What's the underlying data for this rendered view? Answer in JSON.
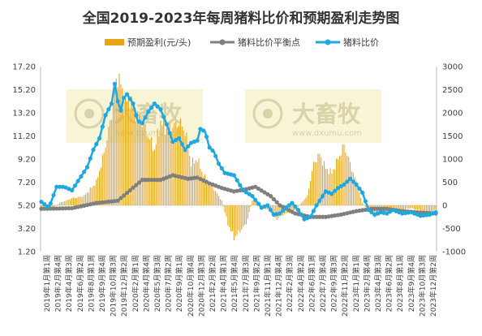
{
  "chart_data": {
    "type": "bar+line",
    "title": "全国2019-2023年每周猪料比价和预期盈利走势图",
    "legend": {
      "position": "top",
      "items": [
        {
          "name": "预期盈利(元/头)",
          "color": "#E8A317",
          "kind": "bar"
        },
        {
          "name": "猪料比价平衡点",
          "color": "#7F7F7F",
          "kind": "line"
        },
        {
          "name": "猪料比价",
          "color": "#1FA8DF",
          "kind": "line"
        }
      ]
    },
    "watermark": {
      "brand": "大畜牧",
      "url": "www.dxumu.com"
    },
    "left_axis": {
      "min": 1.2,
      "max": 17.2,
      "ticks": [
        "17.20",
        "15.20",
        "13.20",
        "11.20",
        "9.20",
        "7.20",
        "5.20",
        "3.20",
        "1.20"
      ]
    },
    "right_axis": {
      "min": -1000,
      "max": 3000,
      "ticks": [
        "3000",
        "2500",
        "2000",
        "1500",
        "1000",
        "500",
        "0",
        "-500",
        "-1000"
      ]
    },
    "x_ticks": [
      "2019年1月第1周",
      "2019年2月第4周",
      "2019年4月第3周",
      "2019年6月第2周",
      "2019年8月第1周",
      "2019年9月第4周",
      "2019年10月第3周",
      "2019年12月第2周",
      "2020年2月第1周",
      "2020年4月第4周",
      "2020年5月第3周",
      "2020年7月第2周",
      "2020年9月第1周",
      "2020年10月第4周",
      "2020年12月第3周",
      "2021年2月第2周",
      "2021年4月第1周",
      "2021年5月第4周",
      "2021年7月第3周",
      "2021年9月第2周",
      "2021年11月第1周",
      "2021年12月第4周",
      "2022年2月第3周",
      "2022年4月第2周",
      "2022年6月第1周",
      "2022年7月第4周",
      "2022年9月第3周",
      "2022年11月第2周",
      "2023年1月第1周",
      "2023年2月第4周",
      "2023年4月第3周",
      "2023年6月第2周",
      "2023年8月第1周",
      "2023年9月第4周",
      "2023年10月第3周",
      "2023年12月第2周"
    ],
    "series": [
      {
        "name": "预期盈利(元/头)",
        "axis": "right",
        "weeks": [
          0,
          8,
          12,
          20,
          28,
          36,
          40,
          44,
          48,
          50,
          52,
          54,
          58,
          62,
          66,
          70,
          74,
          78,
          82,
          86,
          90,
          94,
          98,
          102,
          106,
          110,
          114,
          118,
          122,
          126,
          130,
          134,
          138,
          142,
          146,
          150,
          154,
          158,
          162,
          166,
          170,
          174,
          178,
          182,
          186,
          190,
          194,
          198,
          202,
          206,
          210,
          214,
          218,
          222,
          226,
          230,
          234,
          238,
          242,
          246,
          250,
          254,
          258
        ],
        "values": [
          -50,
          -40,
          50,
          150,
          200,
          500,
          1000,
          1600,
          2400,
          2850,
          2600,
          2200,
          2300,
          2000,
          1800,
          1500,
          1200,
          1800,
          1650,
          1700,
          1800,
          1600,
          900,
          1000,
          650,
          500,
          300,
          100,
          -400,
          -700,
          -550,
          -400,
          100,
          80,
          -50,
          -150,
          -300,
          -200,
          -150,
          -100,
          50,
          200,
          900,
          1100,
          800,
          700,
          1000,
          1300,
          900,
          500,
          50,
          -100,
          -250,
          -200,
          -150,
          -100,
          -100,
          -80,
          -60,
          -100,
          -120,
          -150,
          -100
        ]
      },
      {
        "name": "猪料比价平衡点",
        "axis": "left",
        "weeks": [
          0,
          20,
          36,
          50,
          58,
          66,
          78,
          86,
          96,
          102,
          110,
          118,
          126,
          134,
          140,
          150,
          156,
          166,
          176,
          186,
          196,
          206,
          216,
          226,
          236,
          246,
          252,
          258
        ],
        "values": [
          4.9,
          4.95,
          5.4,
          5.6,
          6.5,
          7.4,
          7.4,
          7.8,
          7.5,
          7.6,
          7.1,
          6.7,
          6.4,
          6.6,
          6.8,
          6.0,
          5.2,
          4.5,
          4.2,
          4.2,
          4.4,
          4.7,
          4.9,
          4.9,
          4.7,
          4.6,
          4.55,
          4.5
        ]
      },
      {
        "name": "猪料比价",
        "axis": "left",
        "weeks": [
          0,
          5,
          10,
          15,
          20,
          25,
          30,
          34,
          38,
          42,
          46,
          48,
          50,
          52,
          54,
          56,
          60,
          63,
          66,
          70,
          74,
          78,
          82,
          86,
          90,
          94,
          98,
          102,
          104,
          107,
          110,
          113,
          116,
          120,
          126,
          132,
          138,
          144,
          148,
          152,
          156,
          160,
          164,
          168,
          172,
          176,
          180,
          186,
          190,
          194,
          198,
          202,
          206,
          210,
          214,
          218,
          222,
          226,
          230,
          236,
          242,
          248,
          254,
          258
        ],
        "values": [
          5.5,
          5.0,
          6.8,
          6.8,
          6.5,
          7.5,
          8.5,
          10.0,
          11.0,
          13.0,
          14.0,
          15.7,
          14.2,
          13.4,
          14.5,
          14.8,
          14.0,
          12.5,
          12.3,
          13.3,
          14.0,
          13.5,
          12.2,
          10.7,
          11.0,
          10.0,
          10.6,
          10.8,
          11.8,
          11.6,
          10.2,
          9.8,
          8.8,
          8.0,
          7.8,
          6.5,
          6.0,
          5.0,
          5.2,
          4.4,
          4.5,
          5.0,
          5.4,
          4.8,
          4.0,
          4.2,
          5.2,
          6.4,
          6.2,
          6.7,
          7.0,
          7.5,
          7.0,
          6.3,
          4.8,
          4.4,
          4.6,
          4.5,
          4.8,
          4.5,
          4.6,
          4.3,
          4.4,
          4.6
        ]
      }
    ],
    "total_weeks": 259,
    "colors": {
      "bar": "#E8A317",
      "balance_line": "#7F7F7F",
      "ratio_line": "#1FA8DF",
      "watermark": "#F5F0C8"
    }
  }
}
